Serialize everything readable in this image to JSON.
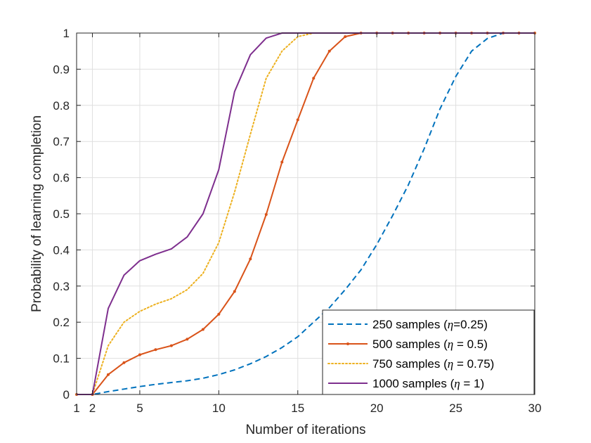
{
  "chart_data": {
    "type": "line",
    "title": "",
    "xlabel": "Number of iterations",
    "ylabel": "Probability of learning completion",
    "xlim": [
      1,
      30
    ],
    "ylim": [
      0,
      1
    ],
    "grid": true,
    "legend_position": "bottom-right",
    "x_ticks": [
      1,
      2,
      5,
      10,
      15,
      20,
      25,
      30
    ],
    "x_tick_labels": [
      "1",
      "2",
      "5",
      "10",
      "15",
      "20",
      "25",
      "30"
    ],
    "y_ticks": [
      0,
      0.1,
      0.2,
      0.3,
      0.4,
      0.5,
      0.6,
      0.7,
      0.8,
      0.9,
      1
    ],
    "y_tick_labels": [
      "0",
      "0.1",
      "0.2",
      "0.3",
      "0.4",
      "0.5",
      "0.6",
      "0.7",
      "0.8",
      "0.9",
      "1"
    ],
    "x": [
      1,
      2,
      3,
      4,
      5,
      6,
      7,
      8,
      9,
      10,
      11,
      12,
      13,
      14,
      15,
      16,
      17,
      18,
      19,
      20,
      21,
      22,
      23,
      24,
      25,
      26,
      27,
      28,
      29,
      30
    ],
    "series": [
      {
        "name": "250 samples (η=0.25)",
        "legend_prefix": "250 samples (",
        "legend_eta": "η",
        "legend_suffix": "=0.25)",
        "color": "#0072BD",
        "style": "dashed",
        "marker": "none",
        "values": [
          0,
          0,
          0.008,
          0.015,
          0.022,
          0.028,
          0.033,
          0.038,
          0.045,
          0.055,
          0.068,
          0.085,
          0.105,
          0.13,
          0.16,
          0.2,
          0.24,
          0.29,
          0.345,
          0.415,
          0.495,
          0.58,
          0.68,
          0.79,
          0.88,
          0.95,
          0.985,
          1,
          1,
          1
        ]
      },
      {
        "name": "500 samples (η = 0.5)",
        "legend_prefix": "500 samples (",
        "legend_eta": "η",
        "legend_suffix": " = 0.5)",
        "color": "#D95319",
        "style": "solid",
        "marker": "dot",
        "values": [
          0,
          0,
          0.055,
          0.088,
          0.11,
          0.124,
          0.135,
          0.153,
          0.18,
          0.222,
          0.285,
          0.375,
          0.498,
          0.643,
          0.76,
          0.875,
          0.95,
          0.99,
          1,
          1,
          1,
          1,
          1,
          1,
          1,
          1,
          1,
          1,
          1,
          1
        ]
      },
      {
        "name": "750 samples (η = 0.75)",
        "legend_prefix": "750 samples (",
        "legend_eta": "η",
        "legend_suffix": " = 0.75)",
        "color": "#EDB120",
        "style": "dotted",
        "marker": "none",
        "values": [
          0,
          0,
          0.135,
          0.2,
          0.23,
          0.25,
          0.265,
          0.29,
          0.335,
          0.42,
          0.56,
          0.72,
          0.875,
          0.95,
          0.99,
          1,
          1,
          1,
          1,
          1,
          1,
          1,
          1,
          1,
          1,
          1,
          1,
          1,
          1,
          1
        ]
      },
      {
        "name": "1000 samples (η = 1)",
        "legend_prefix": "1000 samples (",
        "legend_eta": "η",
        "legend_suffix": " = 1)",
        "color": "#7E2F8E",
        "style": "solid",
        "marker": "none",
        "values": [
          0,
          0,
          0.238,
          0.33,
          0.37,
          0.388,
          0.403,
          0.436,
          0.5,
          0.622,
          0.838,
          0.94,
          0.986,
          1,
          1,
          1,
          1,
          1,
          1,
          1,
          1,
          1,
          1,
          1,
          1,
          1,
          1,
          1,
          1,
          1
        ]
      }
    ]
  }
}
